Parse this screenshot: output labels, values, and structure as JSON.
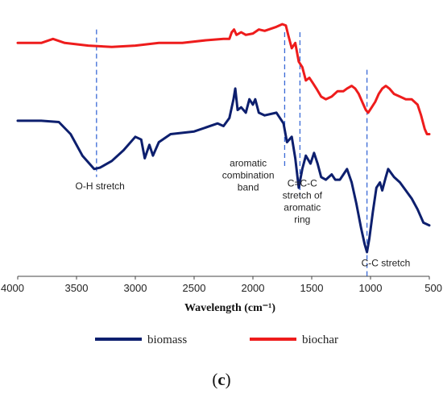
{
  "chart_data": {
    "type": "line",
    "title": "",
    "xlabel": "Wavelength (cm⁻¹)",
    "ylabel": "",
    "xlim": [
      4000,
      500
    ],
    "x_reversed": true,
    "x_ticks": [
      "4000",
      "3500",
      "3000",
      "2500",
      "2000",
      "1500",
      "1000",
      "500"
    ],
    "y_axis_shown": false,
    "grid": false,
    "legend_position": "bottom",
    "series": [
      {
        "name": "biomass",
        "color": "#0d1f6e",
        "points": [
          [
            4000,
            0.58
          ],
          [
            3800,
            0.58
          ],
          [
            3650,
            0.575
          ],
          [
            3550,
            0.53
          ],
          [
            3450,
            0.45
          ],
          [
            3350,
            0.4
          ],
          [
            3300,
            0.405
          ],
          [
            3200,
            0.43
          ],
          [
            3100,
            0.47
          ],
          [
            3000,
            0.52
          ],
          [
            2950,
            0.51
          ],
          [
            2920,
            0.44
          ],
          [
            2880,
            0.49
          ],
          [
            2850,
            0.45
          ],
          [
            2800,
            0.5
          ],
          [
            2700,
            0.53
          ],
          [
            2500,
            0.54
          ],
          [
            2300,
            0.57
          ],
          [
            2250,
            0.56
          ],
          [
            2200,
            0.59
          ],
          [
            2165,
            0.66
          ],
          [
            2150,
            0.7
          ],
          [
            2130,
            0.62
          ],
          [
            2100,
            0.63
          ],
          [
            2060,
            0.61
          ],
          [
            2030,
            0.66
          ],
          [
            2000,
            0.64
          ],
          [
            1980,
            0.66
          ],
          [
            1950,
            0.61
          ],
          [
            1900,
            0.6
          ],
          [
            1800,
            0.61
          ],
          [
            1740,
            0.57
          ],
          [
            1710,
            0.5
          ],
          [
            1670,
            0.52
          ],
          [
            1640,
            0.44
          ],
          [
            1610,
            0.33
          ],
          [
            1580,
            0.4
          ],
          [
            1550,
            0.45
          ],
          [
            1510,
            0.42
          ],
          [
            1480,
            0.46
          ],
          [
            1450,
            0.42
          ],
          [
            1420,
            0.37
          ],
          [
            1380,
            0.36
          ],
          [
            1330,
            0.38
          ],
          [
            1300,
            0.36
          ],
          [
            1260,
            0.36
          ],
          [
            1230,
            0.38
          ],
          [
            1200,
            0.4
          ],
          [
            1160,
            0.35
          ],
          [
            1120,
            0.27
          ],
          [
            1080,
            0.18
          ],
          [
            1050,
            0.12
          ],
          [
            1030,
            0.09
          ],
          [
            1010,
            0.14
          ],
          [
            980,
            0.24
          ],
          [
            950,
            0.33
          ],
          [
            920,
            0.35
          ],
          [
            900,
            0.32
          ],
          [
            870,
            0.37
          ],
          [
            850,
            0.4
          ],
          [
            800,
            0.37
          ],
          [
            750,
            0.35
          ],
          [
            700,
            0.32
          ],
          [
            650,
            0.29
          ],
          [
            600,
            0.25
          ],
          [
            550,
            0.2
          ],
          [
            500,
            0.19
          ]
        ]
      },
      {
        "name": "biochar",
        "color": "#ee1c1c",
        "points": [
          [
            4000,
            0.87
          ],
          [
            3800,
            0.87
          ],
          [
            3700,
            0.885
          ],
          [
            3600,
            0.87
          ],
          [
            3400,
            0.86
          ],
          [
            3200,
            0.855
          ],
          [
            3000,
            0.86
          ],
          [
            2800,
            0.87
          ],
          [
            2600,
            0.87
          ],
          [
            2400,
            0.88
          ],
          [
            2250,
            0.885
          ],
          [
            2200,
            0.885
          ],
          [
            2180,
            0.91
          ],
          [
            2160,
            0.92
          ],
          [
            2140,
            0.9
          ],
          [
            2100,
            0.91
          ],
          [
            2060,
            0.9
          ],
          [
            2000,
            0.905
          ],
          [
            1950,
            0.92
          ],
          [
            1900,
            0.915
          ],
          [
            1800,
            0.93
          ],
          [
            1750,
            0.94
          ],
          [
            1720,
            0.935
          ],
          [
            1700,
            0.9
          ],
          [
            1670,
            0.85
          ],
          [
            1640,
            0.87
          ],
          [
            1610,
            0.8
          ],
          [
            1580,
            0.78
          ],
          [
            1550,
            0.73
          ],
          [
            1520,
            0.74
          ],
          [
            1490,
            0.72
          ],
          [
            1460,
            0.7
          ],
          [
            1420,
            0.67
          ],
          [
            1380,
            0.66
          ],
          [
            1330,
            0.67
          ],
          [
            1280,
            0.69
          ],
          [
            1230,
            0.69
          ],
          [
            1200,
            0.7
          ],
          [
            1160,
            0.71
          ],
          [
            1130,
            0.7
          ],
          [
            1100,
            0.68
          ],
          [
            1060,
            0.64
          ],
          [
            1040,
            0.62
          ],
          [
            1020,
            0.61
          ],
          [
            990,
            0.63
          ],
          [
            960,
            0.65
          ],
          [
            930,
            0.68
          ],
          [
            900,
            0.7
          ],
          [
            870,
            0.71
          ],
          [
            840,
            0.7
          ],
          [
            800,
            0.68
          ],
          [
            750,
            0.67
          ],
          [
            700,
            0.66
          ],
          [
            650,
            0.66
          ],
          [
            600,
            0.64
          ],
          [
            570,
            0.6
          ],
          [
            540,
            0.55
          ],
          [
            520,
            0.53
          ],
          [
            500,
            0.53
          ]
        ]
      }
    ],
    "markers": [
      {
        "x": 3330,
        "y_top": 0.92,
        "y_bottom": 0.37,
        "color": "#3a6ad6"
      },
      {
        "x": 1730,
        "y_top": 0.91,
        "y_bottom": 0.41,
        "color": "#3a6ad6"
      },
      {
        "x": 1600,
        "y_top": 0.91,
        "y_bottom": 0.3,
        "color": "#3a6ad6"
      },
      {
        "x": 1030,
        "y_top": 0.77,
        "y_bottom": 0.0,
        "color": "#3a6ad6"
      }
    ],
    "annotations": [
      {
        "lines": [
          "O-H stretch"
        ],
        "x": 3300,
        "y": 0.325,
        "anchor": "middle"
      },
      {
        "lines": [
          "aromatic",
          "combination",
          "band"
        ],
        "x": 2040,
        "y": 0.41,
        "anchor": "middle"
      },
      {
        "lines": [
          "C=C-C",
          "stretch of",
          "aromatic",
          "ring"
        ],
        "x": 1580,
        "y": 0.335,
        "anchor": "middle"
      },
      {
        "lines": [
          "C-C stretch"
        ],
        "x": 870,
        "y": 0.038,
        "anchor": "middle"
      }
    ]
  },
  "figure": {
    "legend": [
      {
        "label": "biomass",
        "color": "#0d1f6e"
      },
      {
        "label": "biochar",
        "color": "#ee1c1c"
      }
    ],
    "panel_label": {
      "open": "(",
      "letter": "c",
      "close": ")"
    }
  }
}
